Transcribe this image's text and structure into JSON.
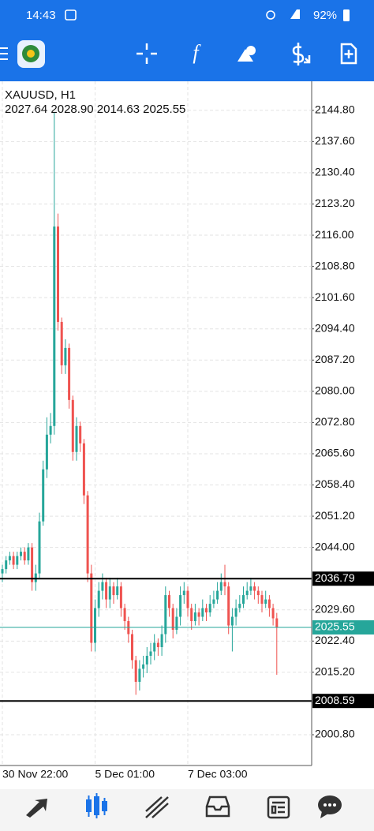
{
  "status_bar": {
    "time": "14:43",
    "battery": "92%"
  },
  "chart_data": {
    "type": "candlestick",
    "title": "XAUUSD, H1",
    "subtitle": "2027.64 2028.90 2014.63 2025.55",
    "categories": [
      "30 Nov 22:00",
      null,
      null,
      null,
      null,
      null,
      null,
      null,
      null,
      null,
      null,
      null,
      null,
      null,
      null,
      null,
      null,
      null,
      null,
      null,
      null,
      null,
      null,
      null,
      null,
      "5 Dec 01:00",
      null,
      null,
      null,
      null,
      null,
      null,
      null,
      null,
      null,
      null,
      null,
      null,
      null,
      null,
      null,
      null,
      null,
      null,
      null,
      null,
      null,
      null,
      null,
      null,
      "7 Dec 03:00",
      null,
      null,
      null,
      null,
      null,
      null,
      null,
      null,
      null,
      null,
      null,
      null,
      null,
      null,
      null,
      null,
      null,
      null,
      null,
      null,
      null,
      null,
      null,
      null
    ],
    "open": [
      2038,
      2039,
      2041,
      2042,
      2040,
      2042,
      2043,
      2041,
      2044,
      2036,
      2038,
      2050,
      2062,
      2070,
      2072,
      2118,
      2096,
      2086,
      2090,
      2078,
      2066,
      2072,
      2068,
      2056,
      2038,
      2022,
      2030,
      2034,
      2036,
      2032,
      2035,
      2033,
      2035,
      2030,
      2027,
      2024,
      2018,
      2013,
      2016,
      2017,
      2019,
      2020,
      2022,
      2021,
      2024,
      2033,
      2030,
      2025,
      2028,
      2033,
      2034,
      2030,
      2027,
      2029,
      2028,
      2030,
      2029,
      2031,
      2032,
      2034,
      2036,
      2035,
      2026,
      2028,
      2030,
      2031,
      2033,
      2034,
      2035,
      2034,
      2033,
      2031,
      2032,
      2030,
      2027.64
    ],
    "high": [
      2040,
      2042,
      2043,
      2043,
      2043,
      2044,
      2044,
      2045,
      2045,
      2040,
      2052,
      2064,
      2074,
      2075,
      2144.3,
      2121,
      2097,
      2092,
      2091,
      2079,
      2074,
      2073,
      2069,
      2057,
      2040,
      2032,
      2036,
      2038,
      2037,
      2037,
      2036,
      2037,
      2036,
      2031,
      2028,
      2025,
      2019,
      2018,
      2019,
      2021,
      2022,
      2024,
      2023,
      2026,
      2035,
      2034,
      2031,
      2030,
      2035,
      2036,
      2035,
      2031,
      2031,
      2030,
      2032,
      2031,
      2033,
      2034,
      2036,
      2038,
      2040,
      2036,
      2030,
      2032,
      2033,
      2035,
      2036,
      2037,
      2036,
      2035,
      2034,
      2034,
      2033,
      2031,
      2028.9
    ],
    "low": [
      2036,
      2038,
      2040,
      2039,
      2039,
      2041,
      2040,
      2040,
      2034,
      2034,
      2037,
      2049,
      2060,
      2068,
      2070,
      2094,
      2084,
      2084,
      2076,
      2064,
      2064,
      2066,
      2054,
      2036,
      2020,
      2020,
      2028,
      2032,
      2030,
      2030,
      2031,
      2032,
      2028,
      2025,
      2022,
      2016,
      2010,
      2011,
      2014,
      2015,
      2017,
      2018,
      2019,
      2019,
      2022,
      2028,
      2023,
      2024,
      2026,
      2031,
      2028,
      2025,
      2026,
      2026,
      2027,
      2027,
      2028,
      2030,
      2031,
      2033,
      2033,
      2024,
      2020,
      2026,
      2029,
      2030,
      2032,
      2033,
      2032,
      2031,
      2029,
      2030,
      2028,
      2026,
      2014.63
    ],
    "close": [
      2039,
      2041,
      2042,
      2040,
      2042,
      2043,
      2041,
      2044,
      2036,
      2038,
      2050,
      2062,
      2070,
      2072,
      2118,
      2096,
      2086,
      2090,
      2078,
      2066,
      2072,
      2068,
      2056,
      2038,
      2022,
      2030,
      2034,
      2036,
      2032,
      2035,
      2033,
      2035,
      2030,
      2027,
      2024,
      2018,
      2013,
      2016,
      2017,
      2019,
      2020,
      2022,
      2021,
      2024,
      2033,
      2030,
      2025,
      2028,
      2033,
      2034,
      2030,
      2027,
      2029,
      2028,
      2030,
      2029,
      2031,
      2032,
      2034,
      2036,
      2035,
      2026,
      2028,
      2030,
      2031,
      2033,
      2034,
      2035,
      2034,
      2033,
      2031,
      2032,
      2030,
      2027.64,
      2025.55
    ],
    "up_color": "#26a69a",
    "down_color": "#ef5350",
    "ylim": [
      1993.7,
      2151.5
    ],
    "yticks": [
      {
        "value": 2144.8,
        "label": "2144.80"
      },
      {
        "value": 2137.6,
        "label": "2137.60"
      },
      {
        "value": 2130.4,
        "label": "2130.40"
      },
      {
        "value": 2123.2,
        "label": "2123.20"
      },
      {
        "value": 2116,
        "label": "2116.00"
      },
      {
        "value": 2108.8,
        "label": "2108.80"
      },
      {
        "value": 2101.6,
        "label": "2101.60"
      },
      {
        "value": 2094.4,
        "label": "2094.40"
      },
      {
        "value": 2087.2,
        "label": "2087.20"
      },
      {
        "value": 2080,
        "label": "2080.00"
      },
      {
        "value": 2072.8,
        "label": "2072.80"
      },
      {
        "value": 2065.6,
        "label": "2065.60"
      },
      {
        "value": 2058.4,
        "label": "2058.40"
      },
      {
        "value": 2051.2,
        "label": "2051.20"
      },
      {
        "value": 2044,
        "label": "2044.00"
      },
      {
        "value": 2029.6,
        "label": "2029.60"
      },
      {
        "value": 2022.4,
        "label": "2022.40"
      },
      {
        "value": 2015.2,
        "label": "2015.20"
      },
      {
        "value": 2000.8,
        "label": "2000.80"
      }
    ],
    "hlines": [
      {
        "value": 2036.79,
        "color": "#000000"
      },
      {
        "value": 2008.59,
        "color": "#000000"
      }
    ],
    "current_price": {
      "value": 2025.55,
      "color": "#26a69a"
    },
    "grid": true
  }
}
